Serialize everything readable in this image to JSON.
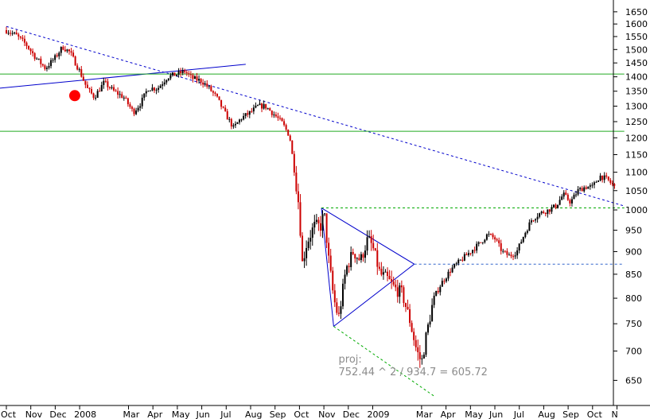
{
  "chart_data": {
    "type": "candlestick",
    "title": "",
    "xlabel": "",
    "ylabel": "",
    "ylim": [
      610,
      1700
    ],
    "y_axis_side": "right",
    "y_scale": "log",
    "grid": false,
    "yticks": [
      650,
      700,
      750,
      800,
      850,
      900,
      950,
      1000,
      1050,
      1100,
      1150,
      1200,
      1250,
      1300,
      1350,
      1400,
      1450,
      1500,
      1550,
      1600,
      1650
    ],
    "xticks": [
      {
        "label": "Oct",
        "t": 0
      },
      {
        "label": "Nov",
        "t": 1
      },
      {
        "label": "Dec",
        "t": 2
      },
      {
        "label": "2008",
        "t": 3
      },
      {
        "label": "Mar",
        "t": 5
      },
      {
        "label": "Apr",
        "t": 6
      },
      {
        "label": "May",
        "t": 7
      },
      {
        "label": "Jun",
        "t": 8
      },
      {
        "label": "Jul",
        "t": 9
      },
      {
        "label": "Aug",
        "t": 10
      },
      {
        "label": "Sep",
        "t": 11
      },
      {
        "label": "Oct",
        "t": 12
      },
      {
        "label": "Nov",
        "t": 13
      },
      {
        "label": "Dec",
        "t": 14
      },
      {
        "label": "2009",
        "t": 15
      },
      {
        "label": "Mar",
        "t": 17
      },
      {
        "label": "Apr",
        "t": 18
      },
      {
        "label": "May",
        "t": 19
      },
      {
        "label": "Jun",
        "t": 20
      },
      {
        "label": "Jul",
        "t": 21
      },
      {
        "label": "Aug",
        "t": 22
      },
      {
        "label": "Sep",
        "t": 23
      },
      {
        "label": "Oct",
        "t": 24
      },
      {
        "label": "N",
        "t": 25
      }
    ],
    "price_path": [
      [
        0.0,
        1575
      ],
      [
        0.4,
        1555
      ],
      [
        0.8,
        1520
      ],
      [
        1.2,
        1470
      ],
      [
        1.6,
        1430
      ],
      [
        2.0,
        1470
      ],
      [
        2.3,
        1510
      ],
      [
        2.6,
        1490
      ],
      [
        3.0,
        1420
      ],
      [
        3.3,
        1360
      ],
      [
        3.6,
        1330
      ],
      [
        4.0,
        1380
      ],
      [
        4.4,
        1350
      ],
      [
        4.8,
        1330
      ],
      [
        5.2,
        1280
      ],
      [
        5.5,
        1310
      ],
      [
        5.8,
        1360
      ],
      [
        6.2,
        1360
      ],
      [
        6.6,
        1400
      ],
      [
        7.0,
        1410
      ],
      [
        7.3,
        1420
      ],
      [
        7.6,
        1395
      ],
      [
        8.0,
        1385
      ],
      [
        8.3,
        1360
      ],
      [
        8.6,
        1330
      ],
      [
        9.0,
        1270
      ],
      [
        9.3,
        1230
      ],
      [
        9.6,
        1260
      ],
      [
        10.0,
        1280
      ],
      [
        10.3,
        1300
      ],
      [
        10.6,
        1300
      ],
      [
        11.0,
        1270
      ],
      [
        11.3,
        1245
      ],
      [
        11.6,
        1205
      ],
      [
        11.8,
        1100
      ],
      [
        12.0,
        1000
      ],
      [
        12.1,
        870
      ],
      [
        12.3,
        920
      ],
      [
        12.6,
        960
      ],
      [
        12.9,
        960
      ],
      [
        13.0,
        1000
      ],
      [
        13.2,
        880
      ],
      [
        13.4,
        800
      ],
      [
        13.6,
        760
      ],
      [
        13.9,
        860
      ],
      [
        14.2,
        900
      ],
      [
        14.5,
        880
      ],
      [
        14.8,
        930
      ],
      [
        15.0,
        910
      ],
      [
        15.3,
        850
      ],
      [
        15.6,
        840
      ],
      [
        15.9,
        820
      ],
      [
        16.2,
        810
      ],
      [
        16.5,
        760
      ],
      [
        16.8,
        700
      ],
      [
        17.0,
        680
      ],
      [
        17.2,
        730
      ],
      [
        17.5,
        800
      ],
      [
        17.8,
        830
      ],
      [
        18.2,
        860
      ],
      [
        18.6,
        880
      ],
      [
        19.0,
        900
      ],
      [
        19.4,
        920
      ],
      [
        19.7,
        940
      ],
      [
        20.0,
        930
      ],
      [
        20.3,
        900
      ],
      [
        20.6,
        890
      ],
      [
        20.9,
        900
      ],
      [
        21.2,
        940
      ],
      [
        21.5,
        975
      ],
      [
        21.8,
        990
      ],
      [
        22.2,
        1000
      ],
      [
        22.5,
        1010
      ],
      [
        22.8,
        1040
      ],
      [
        23.1,
        1020
      ],
      [
        23.4,
        1050
      ],
      [
        23.7,
        1060
      ],
      [
        24.0,
        1060
      ],
      [
        24.3,
        1090
      ],
      [
        24.6,
        1080
      ],
      [
        24.9,
        1060
      ]
    ],
    "trend_lines": [
      {
        "id": "long-downtrend",
        "style": "dashed",
        "color": "#0000cc",
        "points": [
          [
            0.0,
            1590
          ],
          [
            25.3,
            1010
          ]
        ]
      },
      {
        "id": "uptrend",
        "style": "solid",
        "color": "#0000cc",
        "points": [
          [
            -0.3,
            1360
          ],
          [
            9.8,
            1445
          ]
        ]
      },
      {
        "id": "triangle-upper",
        "style": "solid",
        "color": "#0000cc",
        "points": [
          [
            12.9,
            1005
          ],
          [
            16.7,
            872
          ]
        ]
      },
      {
        "id": "triangle-lower",
        "style": "solid",
        "color": "#0000cc",
        "points": [
          [
            13.4,
            745
          ],
          [
            16.7,
            872
          ]
        ]
      },
      {
        "id": "triangle-height",
        "style": "solid",
        "color": "#0000cc",
        "points": [
          [
            12.9,
            1005
          ],
          [
            13.4,
            745
          ]
        ]
      },
      {
        "id": "projection",
        "style": "dashed",
        "color": "#00aa00",
        "points": [
          [
            13.4,
            745
          ],
          [
            17.5,
            625
          ]
        ]
      },
      {
        "id": "level-1005",
        "style": "dashed",
        "color": "#00aa00",
        "points": [
          [
            12.9,
            1005
          ],
          [
            25.3,
            1005
          ]
        ]
      },
      {
        "id": "level-872",
        "style": "dashed",
        "color": "#3366cc",
        "points": [
          [
            16.7,
            872
          ],
          [
            25.3,
            872
          ]
        ]
      },
      {
        "id": "hline-1410",
        "style": "solid",
        "color": "#22aa22",
        "points": [
          [
            -0.3,
            1410
          ],
          [
            25.3,
            1410
          ]
        ]
      },
      {
        "id": "hline-1220",
        "style": "solid",
        "color": "#22aa22",
        "points": [
          [
            -0.3,
            1220
          ],
          [
            25.3,
            1220
          ]
        ]
      }
    ],
    "marker": {
      "t": 2.8,
      "y": 1335,
      "color": "#ff0000"
    },
    "annotation": {
      "t": 13.6,
      "y": 680,
      "lines": [
        "proj:",
        "752.44 ^ 2 / 934.7 = 605.72"
      ]
    }
  },
  "colors": {
    "up": "#000000",
    "down": "#cc0000",
    "axis": "#000000"
  }
}
